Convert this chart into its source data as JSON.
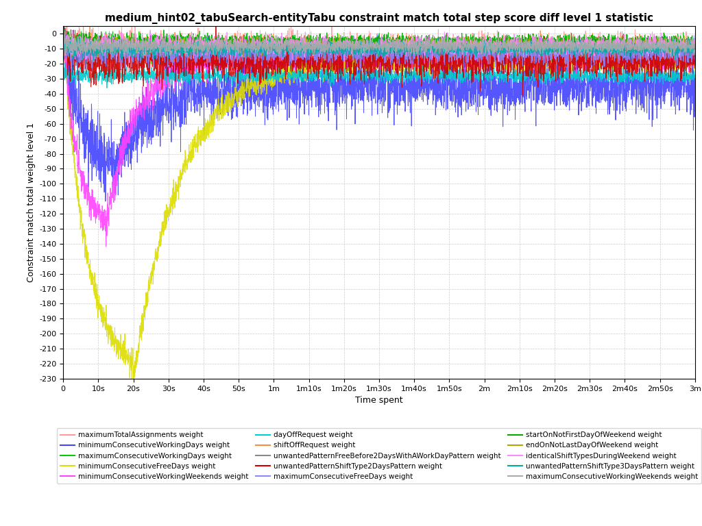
{
  "title": "medium_hint02_tabuSearch-entityTabu constraint match total step score diff level 1 statistic",
  "xlabel": "Time spent",
  "ylabel": "Constraint match total weight level 1",
  "ylim": [
    -230,
    5
  ],
  "yticks": [
    0,
    -10,
    -20,
    -30,
    -40,
    -50,
    -60,
    -70,
    -80,
    -90,
    -100,
    -110,
    -120,
    -130,
    -140,
    -150,
    -160,
    -170,
    -180,
    -190,
    -200,
    -210,
    -220,
    -230
  ],
  "xtick_labels": [
    "0",
    "10s",
    "20s",
    "30s",
    "40s",
    "50s",
    "1m",
    "1m10s",
    "1m20s",
    "1m30s",
    "1m40s",
    "1m50s",
    "2m",
    "2m10s",
    "2m20s",
    "2m30s",
    "2m40s",
    "2m50s",
    "3m"
  ],
  "duration_seconds": 180,
  "legend_entries": [
    {
      "label": "maximumTotalAssignments weight",
      "color": "#FF9999"
    },
    {
      "label": "minimumConsecutiveWorkingDays weight",
      "color": "#4444FF"
    },
    {
      "label": "maximumConsecutiveWorkingDays weight",
      "color": "#00CC00"
    },
    {
      "label": "minimumConsecutiveFreeDays weight",
      "color": "#DDDD00"
    },
    {
      "label": "minimumConsecutiveWorkingWeekends weight",
      "color": "#FF44FF"
    },
    {
      "label": "dayOffRequest weight",
      "color": "#00CCCC"
    },
    {
      "label": "shiftOffRequest weight",
      "color": "#FF8844"
    },
    {
      "label": "unwantedPatternFreeBefore2DaysWithAWorkDayPattern weight",
      "color": "#888888"
    },
    {
      "label": "unwantedPatternShiftType2DaysPattern weight",
      "color": "#CC0000"
    },
    {
      "label": "maximumConsecutiveFreeDays weight",
      "color": "#8888FF"
    },
    {
      "label": "startOnNotFirstDayOfWeekend weight",
      "color": "#00AA00"
    },
    {
      "label": "endOnNotLastDayOfWeekend weight",
      "color": "#AAAA00"
    },
    {
      "label": "identicalShiftTypesDuringWeekend weight",
      "color": "#FF88FF"
    },
    {
      "label": "unwantedPatternShiftType3DaysPattern weight",
      "color": "#00AAAA"
    },
    {
      "label": "maximumConsecutiveWorkingWeekends weight",
      "color": "#AAAAAA"
    }
  ],
  "background_color": "#FFFFFF",
  "grid_color": "#CCCCCC"
}
